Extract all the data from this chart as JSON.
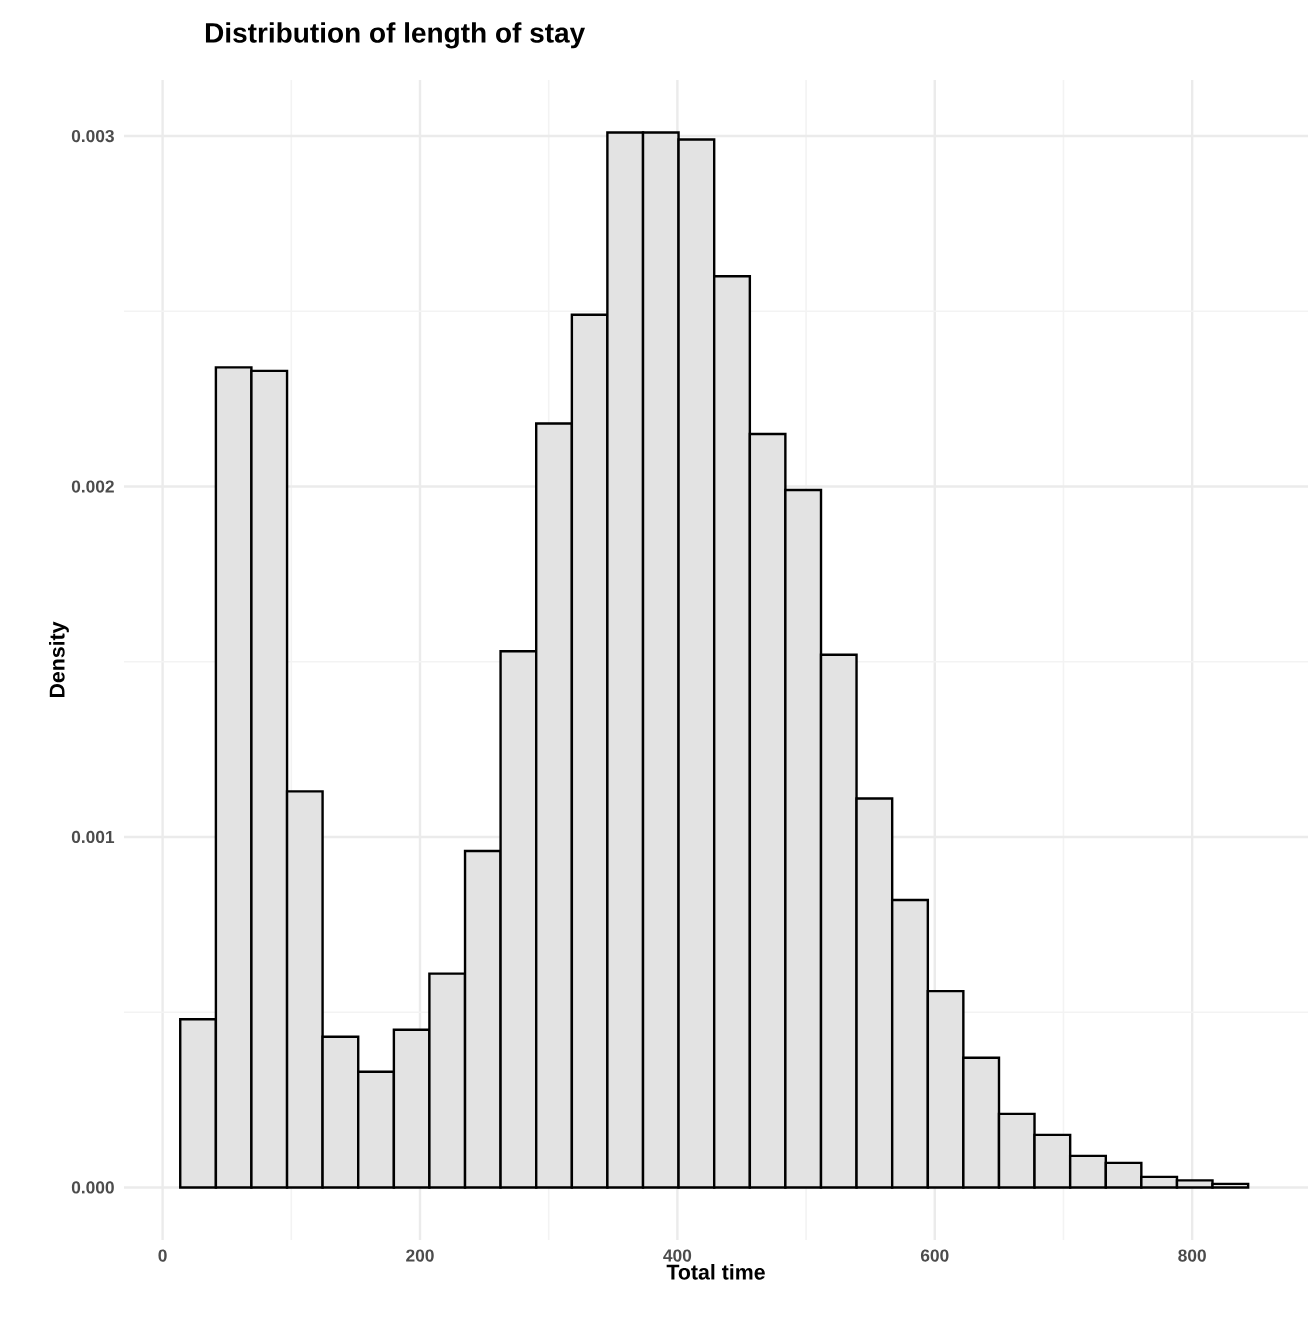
{
  "chart_data": {
    "type": "histogram",
    "title": "Distribution of length of stay",
    "xlabel": "Total time",
    "ylabel": "Density",
    "bins": [
      13.7,
      41.4,
      69.0,
      96.7,
      124.3,
      152.0,
      179.7,
      207.3,
      235.0,
      262.6,
      290.3,
      318.0,
      345.6,
      373.3,
      400.9,
      428.6,
      456.3,
      483.9,
      511.6,
      539.2,
      566.9,
      594.6,
      622.2,
      649.9,
      677.5,
      705.2,
      732.9,
      760.5,
      788.2,
      815.8,
      843.5
    ],
    "values": [
      0.00048,
      0.00234,
      0.00233,
      0.00113,
      0.00043,
      0.00033,
      0.00045,
      0.00061,
      0.00096,
      0.00153,
      0.00218,
      0.00249,
      0.00301,
      0.00301,
      0.00299,
      0.0026,
      0.00215,
      0.00199,
      0.00152,
      0.00111,
      0.00082,
      0.00056,
      0.00037,
      0.00021,
      0.00015,
      9e-05,
      7e-05,
      3e-05,
      2e-05,
      1e-05
    ],
    "color": "#e3e3e3",
    "xlim": [
      -30,
      890
    ],
    "ylim": [
      -0.00015,
      0.00316
    ],
    "xticks": [
      0,
      200,
      400,
      600,
      800
    ],
    "yticks": [
      {
        "value": 0,
        "label": "0.000"
      },
      {
        "value": 0.001,
        "label": "0.001"
      },
      {
        "value": 0.002,
        "label": "0.002"
      },
      {
        "value": 0.003,
        "label": "0.003"
      }
    ],
    "grid": true
  }
}
